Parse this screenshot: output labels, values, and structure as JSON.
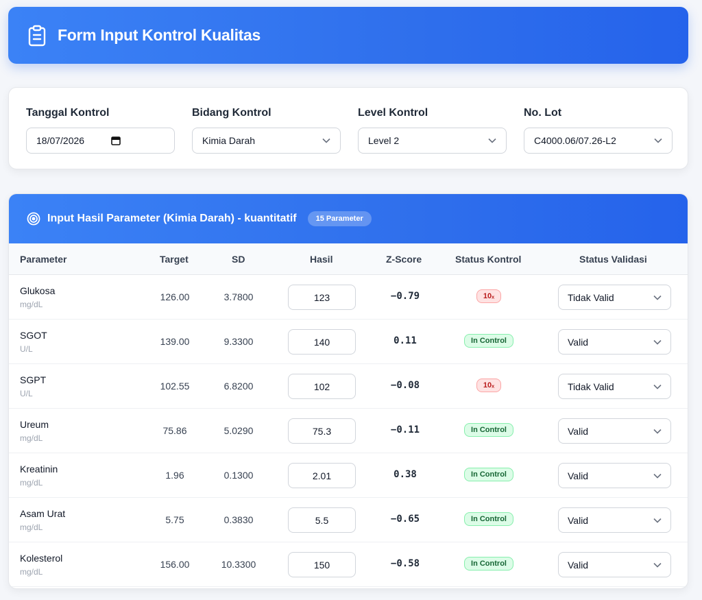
{
  "header": {
    "title": "Form Input Kontrol Kualitas",
    "icon": "clipboard-icon"
  },
  "filters": {
    "tanggal": {
      "label": "Tanggal Kontrol",
      "value": "18/07/2026"
    },
    "bidang": {
      "label": "Bidang Kontrol",
      "value": "Kimia Darah"
    },
    "level": {
      "label": "Level Kontrol",
      "value": "Level 2"
    },
    "lot": {
      "label": "No. Lot",
      "value": "C4000.06/07.26-L2"
    }
  },
  "panel": {
    "title": "Input Hasil Parameter (Kimia Darah) - kuantitatif",
    "badge": "15 Parameter",
    "icon": "target-icon"
  },
  "columns": {
    "parameter": "Parameter",
    "target": "Target",
    "sd": "SD",
    "hasil": "Hasil",
    "zscore": "Z-Score",
    "status": "Status Kontrol",
    "validasi": "Status Validasi"
  },
  "colors": {
    "accent": "#3b82f6",
    "ok": "#166534",
    "bad": "#b91c1c"
  },
  "rows": [
    {
      "name": "Glukosa",
      "unit": "mg/dL",
      "target": "126.00",
      "sd": "3.7800",
      "hasil": "123",
      "z": "−0.79",
      "status": "10ₓ",
      "status_type": "bad",
      "validasi": "Tidak Valid"
    },
    {
      "name": "SGOT",
      "unit": "U/L",
      "target": "139.00",
      "sd": "9.3300",
      "hasil": "140",
      "z": "0.11",
      "status": "In Control",
      "status_type": "ok",
      "validasi": "Valid"
    },
    {
      "name": "SGPT",
      "unit": "U/L",
      "target": "102.55",
      "sd": "6.8200",
      "hasil": "102",
      "z": "−0.08",
      "status": "10ₓ",
      "status_type": "bad",
      "validasi": "Tidak Valid"
    },
    {
      "name": "Ureum",
      "unit": "mg/dL",
      "target": "75.86",
      "sd": "5.0290",
      "hasil": "75.3",
      "z": "−0.11",
      "status": "In Control",
      "status_type": "ok",
      "validasi": "Valid"
    },
    {
      "name": "Kreatinin",
      "unit": "mg/dL",
      "target": "1.96",
      "sd": "0.1300",
      "hasil": "2.01",
      "z": "0.38",
      "status": "In Control",
      "status_type": "ok",
      "validasi": "Valid"
    },
    {
      "name": "Asam Urat",
      "unit": "mg/dL",
      "target": "5.75",
      "sd": "0.3830",
      "hasil": "5.5",
      "z": "−0.65",
      "status": "In Control",
      "status_type": "ok",
      "validasi": "Valid"
    },
    {
      "name": "Kolesterol",
      "unit": "mg/dL",
      "target": "156.00",
      "sd": "10.3300",
      "hasil": "150",
      "z": "−0.58",
      "status": "In Control",
      "status_type": "ok",
      "validasi": "Valid"
    }
  ]
}
